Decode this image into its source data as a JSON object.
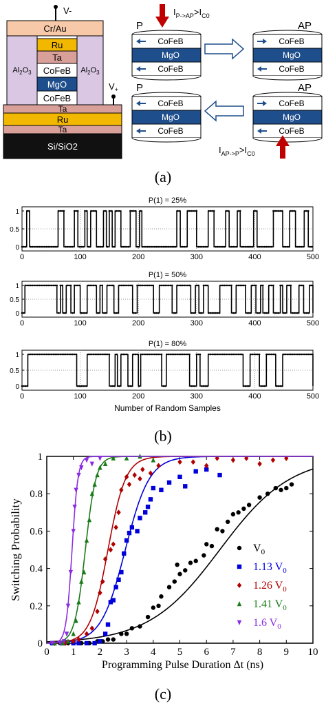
{
  "panel_a": {
    "caption": "(a)",
    "stack": {
      "top_electrode": "Cr/Au",
      "terminal_minus": "V-",
      "terminal_plus": "V+",
      "insulator_left": "Al2O3",
      "insulator_right": "Al2O3",
      "pillar_layers": [
        "Ru",
        "Ta",
        "CoFeB",
        "MgO",
        "CoFeB"
      ],
      "bottom_layers": [
        "Ta",
        "Ru",
        "Ta",
        "Si/SiO2"
      ]
    },
    "states": {
      "p_label": "P",
      "ap_label": "AP",
      "layer_top": "CoFeB",
      "layer_mid": "MgO",
      "layer_bot": "CoFeB",
      "cond_p_to_ap": "IP->AP>IC0",
      "cond_ap_to_p": "IAP->P>IC0"
    },
    "colors": {
      "arrow_current": "#c00000",
      "mgo": "#1f4e8c",
      "ru": "#f2b800",
      "ta": "#d9a09a",
      "crau": "#f7c9a8",
      "al2o3": "#d9c7e3",
      "substrate": "#111111"
    }
  },
  "panel_b": {
    "caption": "(b)",
    "xlabel": "Number of Random Samples",
    "plots": [
      {
        "title": "P(1) = 25%",
        "yticks": [
          "1",
          "0.5",
          "0"
        ],
        "xticks": [
          "0",
          "100",
          "200",
          "300",
          "400",
          "500"
        ]
      },
      {
        "title": "P(1) = 50%",
        "yticks": [
          "1",
          "0.5",
          "0"
        ],
        "xticks": [
          "0",
          "100",
          "200",
          "300",
          "400",
          "500"
        ]
      },
      {
        "title": "P(1) = 80%",
        "yticks": [
          "1",
          "0.5",
          "0"
        ],
        "xticks": [
          "0",
          "100",
          "200",
          "300",
          "400",
          "500"
        ]
      }
    ]
  },
  "panel_c": {
    "caption": "(c)",
    "xlabel": "Programming Pulse Duration Δt (ns)",
    "ylabel": "Switching Probability",
    "xticks": [
      "0",
      "1",
      "2",
      "3",
      "4",
      "5",
      "6",
      "7",
      "8",
      "9",
      "10"
    ],
    "yticks": [
      "0",
      "0.2",
      "0.4",
      "0.6",
      "0.8",
      "1"
    ],
    "legend": [
      {
        "base": "V",
        "sub": "0",
        "prefix": "",
        "color": "#000000",
        "marker": "circle"
      },
      {
        "base": "1.13 V",
        "sub": "0",
        "prefix": "",
        "color": "#0000dd",
        "marker": "square"
      },
      {
        "base": "1.26 V",
        "sub": "0",
        "prefix": "",
        "color": "#b00000",
        "marker": "diamond"
      },
      {
        "base": "1.41 V",
        "sub": "0",
        "prefix": "",
        "color": "#1a7a1a",
        "marker": "triangle-up"
      },
      {
        "base": "1.6 V",
        "sub": "0",
        "prefix": "",
        "color": "#8a2be2",
        "marker": "triangle-down"
      }
    ]
  },
  "chart_data": [
    {
      "type": "line",
      "title": "P(1) = 25%",
      "xlabel": "",
      "ylabel": "",
      "xlim": [
        0,
        500
      ],
      "ylim": [
        0,
        1
      ],
      "series": [
        {
          "name": "",
          "high_intervals": [
            [
              8,
              13
            ],
            [
              62,
              72
            ],
            [
              90,
              96
            ],
            [
              108,
              112
            ],
            [
              118,
              128
            ],
            [
              140,
              145
            ],
            [
              150,
              155
            ],
            [
              160,
              170
            ],
            [
              186,
              196
            ],
            [
              202,
              206
            ],
            [
              266,
              272
            ],
            [
              284,
              300
            ],
            [
              320,
              330
            ],
            [
              350,
              356
            ],
            [
              370,
              375
            ],
            [
              398,
              404
            ],
            [
              432,
              448
            ],
            [
              460,
              470
            ],
            [
              485,
              492
            ]
          ]
        }
      ]
    },
    {
      "type": "line",
      "title": "P(1) = 50%",
      "xlabel": "",
      "ylabel": "",
      "xlim": [
        0,
        500
      ],
      "ylim": [
        0,
        1
      ],
      "series": [
        {
          "name": "",
          "high_intervals": [
            [
              5,
              60
            ],
            [
              66,
              70
            ],
            [
              76,
              84
            ],
            [
              90,
              100
            ],
            [
              112,
              128
            ],
            [
              134,
              138
            ],
            [
              146,
              158
            ],
            [
              166,
              190
            ],
            [
              198,
              226
            ],
            [
              236,
              258
            ],
            [
              266,
              290
            ],
            [
              298,
              304
            ],
            [
              312,
              320
            ],
            [
              340,
              360
            ],
            [
              368,
              384
            ],
            [
              394,
              402
            ],
            [
              410,
              414
            ],
            [
              424,
              432
            ],
            [
              444,
              448
            ],
            [
              455,
              462
            ],
            [
              476,
              484
            ],
            [
              494,
              500
            ]
          ]
        }
      ]
    },
    {
      "type": "line",
      "title": "P(1) = 80%",
      "xlabel": "Number of Random Samples",
      "ylabel": "",
      "xlim": [
        0,
        500
      ],
      "ylim": [
        0,
        1
      ],
      "series": [
        {
          "name": "",
          "high_intervals": [
            [
              10,
              94
            ],
            [
              112,
              150
            ],
            [
              160,
              164
            ],
            [
              170,
              182
            ],
            [
              190,
              200
            ],
            [
              204,
              240
            ],
            [
              248,
              288
            ],
            [
              300,
              306
            ],
            [
              320,
              380
            ],
            [
              392,
              408
            ],
            [
              420,
              436
            ],
            [
              448,
              500
            ]
          ]
        }
      ]
    },
    {
      "type": "scatter",
      "title": "",
      "xlabel": "Programming Pulse Duration Δt (ns)",
      "ylabel": "Switching Probability",
      "xlim": [
        0,
        10
      ],
      "ylim": [
        0,
        1
      ],
      "series": [
        {
          "name": "V0",
          "color": "#000000",
          "marker": "circle",
          "fit": {
            "x50": 6.5,
            "k": 0.75
          },
          "points": [
            [
              0.2,
              0
            ],
            [
              0.5,
              0
            ],
            [
              0.8,
              0
            ],
            [
              1.0,
              0
            ],
            [
              1.3,
              0
            ],
            [
              1.6,
              0
            ],
            [
              1.9,
              0.01
            ],
            [
              2.1,
              0.01
            ],
            [
              2.3,
              0.02
            ],
            [
              2.5,
              0.02
            ],
            [
              2.8,
              0.05
            ],
            [
              3.0,
              0.05
            ],
            [
              3.2,
              0.08
            ],
            [
              3.5,
              0.09
            ],
            [
              3.8,
              0.14
            ],
            [
              4.0,
              0.19
            ],
            [
              4.2,
              0.2
            ],
            [
              4.3,
              0.25
            ],
            [
              4.6,
              0.3
            ],
            [
              4.8,
              0.33
            ],
            [
              4.9,
              0.42
            ],
            [
              5.0,
              0.37
            ],
            [
              5.2,
              0.39
            ],
            [
              5.4,
              0.43
            ],
            [
              5.6,
              0.44
            ],
            [
              5.9,
              0.47
            ],
            [
              6.0,
              0.53
            ],
            [
              6.2,
              0.52
            ],
            [
              6.4,
              0.61
            ],
            [
              6.6,
              0.6
            ],
            [
              6.8,
              0.65
            ],
            [
              7.0,
              0.69
            ],
            [
              7.2,
              0.7
            ],
            [
              7.4,
              0.72
            ],
            [
              7.6,
              0.74
            ],
            [
              8.0,
              0.78
            ],
            [
              8.3,
              0.8
            ],
            [
              8.6,
              0.83
            ],
            [
              8.8,
              0.82
            ],
            [
              9.0,
              0.83
            ],
            [
              9.2,
              0.85
            ]
          ]
        },
        {
          "name": "1.13 V0",
          "color": "#0000dd",
          "marker": "square",
          "fit": {
            "x50": 2.95,
            "k": 2.2
          },
          "points": [
            [
              0.2,
              0
            ],
            [
              0.6,
              0
            ],
            [
              1.0,
              0
            ],
            [
              1.2,
              0
            ],
            [
              1.5,
              0
            ],
            [
              1.8,
              0
            ],
            [
              2.0,
              0.01
            ],
            [
              2.2,
              0.05
            ],
            [
              2.3,
              0.1
            ],
            [
              2.4,
              0.22
            ],
            [
              2.5,
              0.23
            ],
            [
              2.6,
              0.3
            ],
            [
              2.7,
              0.34
            ],
            [
              2.8,
              0.38
            ],
            [
              2.9,
              0.48
            ],
            [
              3.0,
              0.55
            ],
            [
              3.1,
              0.59
            ],
            [
              3.2,
              0.62
            ],
            [
              3.4,
              0.6
            ],
            [
              3.5,
              0.67
            ],
            [
              3.7,
              0.7
            ],
            [
              3.8,
              0.73
            ],
            [
              3.9,
              0.77
            ],
            [
              4.0,
              0.83
            ],
            [
              4.3,
              0.82
            ],
            [
              4.6,
              0.86
            ],
            [
              5.0,
              0.89
            ],
            [
              5.2,
              0.84
            ],
            [
              5.6,
              0.92
            ],
            [
              6.0,
              0.93
            ],
            [
              6.5,
              0.9
            ]
          ]
        },
        {
          "name": "1.26 V0",
          "color": "#b00000",
          "marker": "diamond",
          "fit": {
            "x50": 2.3,
            "k": 3.0
          },
          "points": [
            [
              0.3,
              0
            ],
            [
              0.7,
              0
            ],
            [
              1.0,
              0.01
            ],
            [
              1.2,
              0.02
            ],
            [
              1.5,
              0.05
            ],
            [
              1.7,
              0.08
            ],
            [
              1.9,
              0.17
            ],
            [
              2.0,
              0.27
            ],
            [
              2.1,
              0.33
            ],
            [
              2.2,
              0.45
            ],
            [
              2.4,
              0.5
            ],
            [
              2.5,
              0.53
            ],
            [
              2.6,
              0.62
            ],
            [
              2.7,
              0.7
            ],
            [
              2.8,
              0.82
            ],
            [
              3.0,
              0.89
            ],
            [
              3.1,
              0.85
            ],
            [
              3.3,
              0.9
            ],
            [
              3.5,
              0.88
            ],
            [
              3.6,
              0.93
            ],
            [
              3.9,
              0.91
            ],
            [
              4.2,
              0.95
            ],
            [
              5.0,
              0.97
            ],
            [
              5.5,
              0.97
            ],
            [
              6.0,
              0.95
            ],
            [
              6.4,
              0.99
            ],
            [
              7.0,
              0.98
            ],
            [
              7.5,
              0.99
            ],
            [
              8.0,
              0.96
            ],
            [
              8.5,
              0.98
            ],
            [
              9.0,
              0.99
            ]
          ]
        },
        {
          "name": "1.41 V0",
          "color": "#1a7a1a",
          "marker": "triangle-up",
          "fit": {
            "x50": 1.45,
            "k": 5.0
          },
          "points": [
            [
              0.3,
              0
            ],
            [
              0.6,
              0
            ],
            [
              0.8,
              0.01
            ],
            [
              1.0,
              0.05
            ],
            [
              1.1,
              0.12
            ],
            [
              1.2,
              0.22
            ],
            [
              1.3,
              0.33
            ],
            [
              1.4,
              0.38
            ],
            [
              1.5,
              0.55
            ],
            [
              1.6,
              0.66
            ],
            [
              1.7,
              0.8
            ],
            [
              1.8,
              0.85
            ],
            [
              1.9,
              0.9
            ],
            [
              2.0,
              0.94
            ],
            [
              2.2,
              0.96
            ],
            [
              2.5,
              0.99
            ],
            [
              3.0,
              0.99
            ],
            [
              3.5,
              1.0
            ],
            [
              4.0,
              0.98
            ]
          ]
        },
        {
          "name": "1.6 V0",
          "color": "#8a2be2",
          "marker": "triangle-down",
          "fit": {
            "x50": 0.95,
            "k": 9.0
          },
          "points": [
            [
              0.2,
              0
            ],
            [
              0.5,
              0
            ],
            [
              0.65,
              0.01
            ],
            [
              0.75,
              0.05
            ],
            [
              0.8,
              0.2
            ],
            [
              0.9,
              0.38
            ],
            [
              1.0,
              0.6
            ],
            [
              1.05,
              0.73
            ],
            [
              1.1,
              0.82
            ],
            [
              1.2,
              0.9
            ],
            [
              1.3,
              0.94
            ],
            [
              1.5,
              0.98
            ],
            [
              1.7,
              0.96
            ],
            [
              2.0,
              0.99
            ]
          ]
        }
      ]
    }
  ]
}
